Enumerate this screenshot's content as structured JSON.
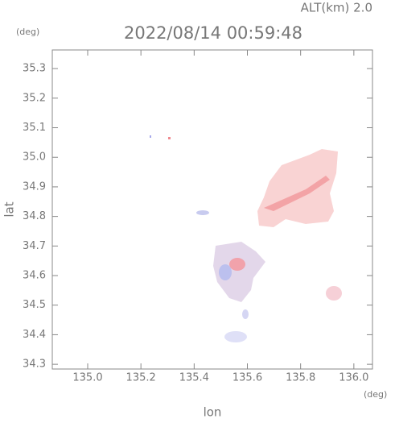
{
  "chart_data": {
    "type": "map",
    "title": "2022/08/14 00:59:48",
    "subtitle": "ALT(km) 2.0",
    "x_label": "lon",
    "y_label": "lat",
    "x_unit": "(deg)",
    "y_unit": "(deg)",
    "xlim": [
      134.867,
      136.07
    ],
    "ylim": [
      34.284,
      35.363
    ],
    "xticks": [
      {
        "value": 135.0,
        "label": "135.0"
      },
      135.2,
      135.4,
      135.6,
      135.8,
      {
        "value": 136.0,
        "label": "136.0"
      }
    ],
    "yticks": [
      34.3,
      34.4,
      34.5,
      34.6,
      34.7,
      34.8,
      34.9,
      {
        "value": 35.0,
        "label": "35.0"
      },
      35.1,
      35.2,
      35.3
    ]
  }
}
